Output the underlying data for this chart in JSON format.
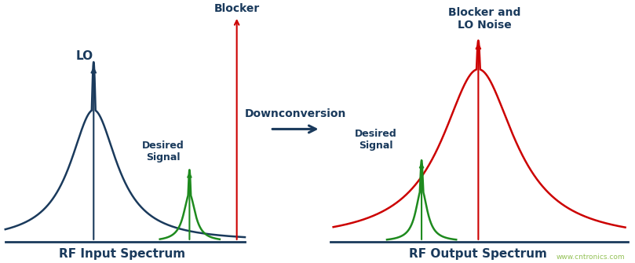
{
  "bg_color": "#ffffff",
  "dark_blue": "#1a3a5c",
  "red": "#cc0000",
  "green": "#1e8a1e",
  "downconv_label": "Downconversion",
  "left_label": "RF Input Spectrum",
  "right_label": "RF Output Spectrum",
  "lo_label": "LO",
  "blocker_left_label": "Blocker",
  "blocker_right_label": "Blocker and\nLO Noise",
  "desired_left_label": "Desired\nSignal",
  "desired_right_label": "Desired\nSignal",
  "watermark": "www.cntronics.com",
  "title_fontsize": 11,
  "label_fontsize": 10
}
